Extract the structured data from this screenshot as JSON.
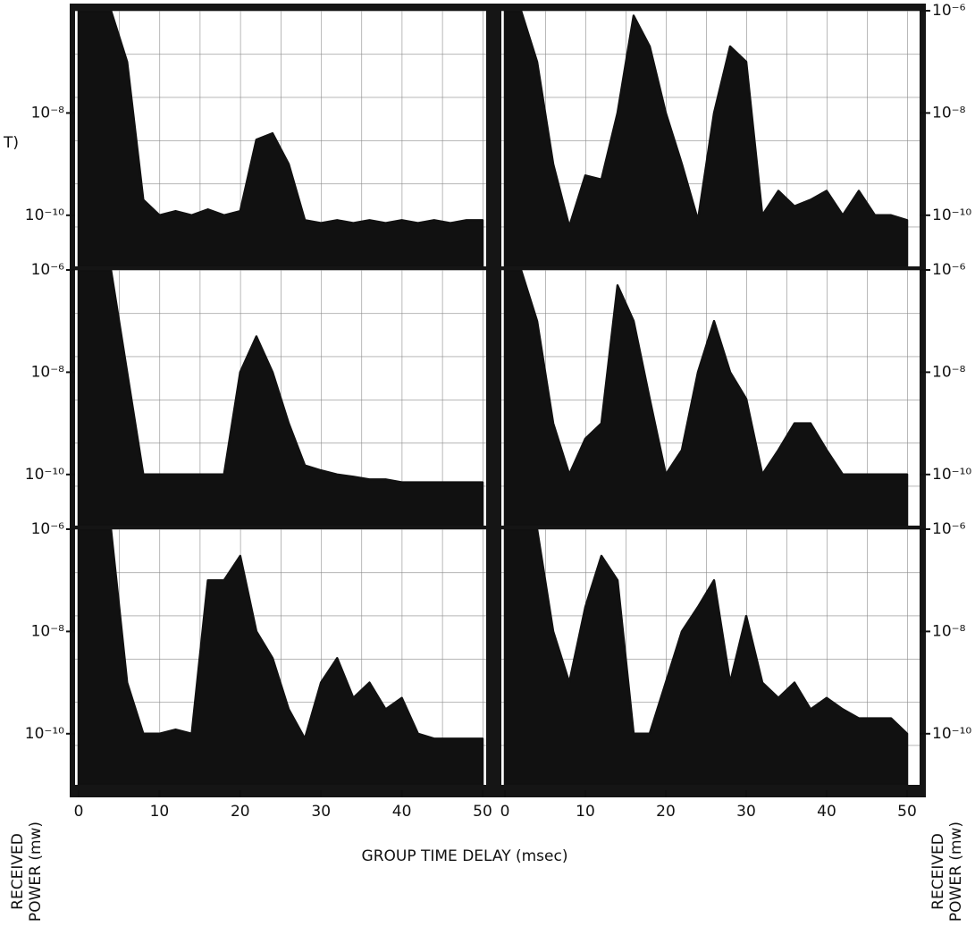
{
  "fragment": "T)",
  "x_label": "GROUP TIME DELAY (msec)",
  "y_label": [
    "RECEIVED",
    "POWER (mw)"
  ],
  "chart_data": [
    {
      "type": "area",
      "log_y": true,
      "xlim": [
        0,
        50
      ],
      "ylim": [
        1e-11,
        1e-06
      ],
      "yticks": [
        {
          "value": 1e-08,
          "label": "10⁻⁸"
        },
        {
          "value": 1e-10,
          "label": "10⁻¹⁰"
        }
      ],
      "x": [
        0,
        2,
        4,
        6,
        8,
        10,
        12,
        14,
        16,
        18,
        20,
        22,
        24,
        26,
        28,
        30,
        32,
        34,
        36,
        38,
        40,
        42,
        44,
        46,
        48,
        50
      ],
      "series": [
        {
          "color": "#111111",
          "values": [
            1e-06,
            1e-06,
            1e-06,
            1e-07,
            2e-10,
            1e-10,
            1.2e-10,
            1e-10,
            1.3e-10,
            1e-10,
            1.2e-10,
            3e-09,
            4e-09,
            1e-09,
            8e-11,
            7e-11,
            8e-11,
            7e-11,
            8e-11,
            7e-11,
            8e-11,
            7e-11,
            8e-11,
            7e-11,
            8e-11,
            8e-11
          ]
        }
      ]
    },
    {
      "type": "area",
      "log_y": true,
      "xlim": [
        0,
        50
      ],
      "ylim": [
        1e-11,
        1e-06
      ],
      "yticks": [
        {
          "value": 1e-06,
          "label": "10⁻⁶"
        },
        {
          "value": 1e-08,
          "label": "10⁻⁸"
        },
        {
          "value": 1e-10,
          "label": "10⁻¹⁰"
        }
      ],
      "x": [
        0,
        2,
        4,
        6,
        8,
        10,
        12,
        14,
        16,
        18,
        20,
        22,
        24,
        26,
        28,
        30,
        32,
        34,
        36,
        38,
        40,
        42,
        44,
        46,
        48,
        50
      ],
      "series": [
        {
          "color": "#111111",
          "values": [
            1e-06,
            1e-06,
            1e-07,
            1e-09,
            6e-11,
            6e-10,
            5e-10,
            1e-08,
            8e-07,
            2e-07,
            1e-08,
            1e-09,
            8e-11,
            1e-08,
            2e-07,
            1e-07,
            1e-10,
            3e-10,
            1.5e-10,
            2e-10,
            3e-10,
            1e-10,
            3e-10,
            1e-10,
            1e-10,
            8e-11
          ]
        }
      ]
    },
    {
      "type": "area",
      "log_y": true,
      "xlim": [
        0,
        50
      ],
      "ylim": [
        1e-11,
        1e-06
      ],
      "yticks": [
        {
          "value": 1e-06,
          "label": "10⁻⁶"
        },
        {
          "value": 1e-08,
          "label": "10⁻⁸"
        },
        {
          "value": 1e-10,
          "label": "10⁻¹⁰"
        }
      ],
      "x": [
        0,
        2,
        4,
        6,
        8,
        10,
        12,
        14,
        16,
        18,
        20,
        22,
        24,
        26,
        28,
        30,
        32,
        34,
        36,
        38,
        40,
        42,
        44,
        46,
        48,
        50
      ],
      "series": [
        {
          "color": "#111111",
          "values": [
            1e-06,
            1e-06,
            1e-06,
            1e-08,
            1e-10,
            1e-10,
            1e-10,
            1e-10,
            1e-10,
            1e-10,
            1e-08,
            5e-08,
            1e-08,
            1e-09,
            1.5e-10,
            1.2e-10,
            1e-10,
            9e-11,
            8e-11,
            8e-11,
            7e-11,
            7e-11,
            7e-11,
            7e-11,
            7e-11,
            7e-11
          ]
        }
      ]
    },
    {
      "type": "area",
      "log_y": true,
      "xlim": [
        0,
        50
      ],
      "ylim": [
        1e-11,
        1e-06
      ],
      "yticks": [
        {
          "value": 1e-06,
          "label": "10⁻⁶"
        },
        {
          "value": 1e-08,
          "label": "10⁻⁸"
        },
        {
          "value": 1e-10,
          "label": "10⁻¹⁰"
        }
      ],
      "x": [
        0,
        2,
        4,
        6,
        8,
        10,
        12,
        14,
        16,
        18,
        20,
        22,
        24,
        26,
        28,
        30,
        32,
        34,
        36,
        38,
        40,
        42,
        44,
        46,
        48,
        50
      ],
      "series": [
        {
          "color": "#111111",
          "values": [
            1e-06,
            1e-06,
            1e-07,
            1e-09,
            1e-10,
            5e-10,
            1e-09,
            5e-07,
            1e-07,
            3e-09,
            1e-10,
            3e-10,
            1e-08,
            1e-07,
            1e-08,
            3e-09,
            1e-10,
            3e-10,
            1e-09,
            1e-09,
            3e-10,
            1e-10,
            1e-10,
            1e-10,
            1e-10,
            1e-10
          ]
        }
      ]
    },
    {
      "type": "area",
      "log_y": true,
      "xlim": [
        0,
        50
      ],
      "ylim": [
        1e-11,
        1e-06
      ],
      "yticks": [
        {
          "value": 1e-06,
          "label": "10⁻⁶"
        },
        {
          "value": 1e-08,
          "label": "10⁻⁸"
        },
        {
          "value": 1e-10,
          "label": "10⁻¹⁰"
        }
      ],
      "xticks": [
        0,
        10,
        20,
        30,
        40,
        50
      ],
      "x": [
        0,
        2,
        4,
        6,
        8,
        10,
        12,
        14,
        16,
        18,
        20,
        22,
        24,
        26,
        28,
        30,
        32,
        34,
        36,
        38,
        40,
        42,
        44,
        46,
        48,
        50
      ],
      "series": [
        {
          "color": "#111111",
          "values": [
            1e-06,
            1e-06,
            1e-06,
            1e-09,
            1e-10,
            1e-10,
            1.2e-10,
            1e-10,
            1e-07,
            1e-07,
            3e-07,
            1e-08,
            3e-09,
            3e-10,
            8e-11,
            1e-09,
            3e-09,
            5e-10,
            1e-09,
            3e-10,
            5e-10,
            1e-10,
            8e-11,
            8e-11,
            8e-11,
            8e-11
          ]
        }
      ]
    },
    {
      "type": "area",
      "log_y": true,
      "xlim": [
        0,
        50
      ],
      "ylim": [
        1e-11,
        1e-06
      ],
      "yticks": [
        {
          "value": 1e-06,
          "label": "10⁻⁶"
        },
        {
          "value": 1e-08,
          "label": "10⁻⁸"
        },
        {
          "value": 1e-10,
          "label": "10⁻¹⁰"
        }
      ],
      "xticks": [
        0,
        10,
        20,
        30,
        40,
        50
      ],
      "x": [
        0,
        2,
        4,
        6,
        8,
        10,
        12,
        14,
        16,
        18,
        20,
        22,
        24,
        26,
        28,
        30,
        32,
        34,
        36,
        38,
        40,
        42,
        44,
        46,
        48,
        50
      ],
      "series": [
        {
          "color": "#111111",
          "values": [
            1e-06,
            1e-06,
            1e-06,
            1e-08,
            1e-09,
            3e-08,
            3e-07,
            1e-07,
            1e-10,
            1e-10,
            1e-09,
            1e-08,
            3e-08,
            1e-07,
            1e-09,
            2e-08,
            1e-09,
            5e-10,
            1e-09,
            3e-10,
            5e-10,
            3e-10,
            2e-10,
            2e-10,
            2e-10,
            1e-10
          ]
        }
      ]
    }
  ]
}
